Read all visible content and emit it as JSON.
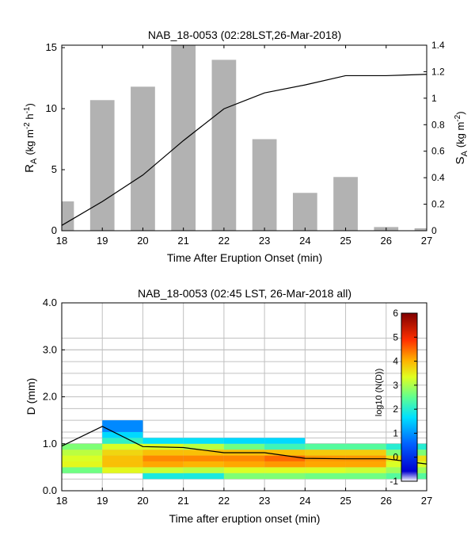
{
  "chart_data": [
    {
      "type": "bar",
      "title": "NAB_18-0053 (02:28LST,26-Mar-2018)",
      "xlabel": "Time After Eruption Onset (min)",
      "ylabel_left": {
        "base": "R",
        "sub": "A",
        "units": "(kg m",
        "sup1": "-2",
        "mid": " h",
        "sup2": "-1",
        "close": ")"
      },
      "ylabel_right": {
        "base": "S",
        "sub": "A",
        "units": "(kg m",
        "sup1": "-2",
        "close": ")"
      },
      "xlim": [
        18,
        27
      ],
      "ylim_left": [
        0,
        15.2
      ],
      "ylim_right": [
        0,
        1.4
      ],
      "xticks": [
        18,
        19,
        20,
        21,
        22,
        23,
        24,
        25,
        26,
        27
      ],
      "yticks_left": [
        0,
        5,
        10,
        15
      ],
      "yticks_right": [
        0,
        0.2,
        0.4,
        0.6,
        0.8,
        1,
        1.2,
        1.4
      ],
      "bars": [
        {
          "x": 18,
          "value": 2.4
        },
        {
          "x": 19,
          "value": 10.7
        },
        {
          "x": 20,
          "value": 11.8
        },
        {
          "x": 21,
          "value": 15.3
        },
        {
          "x": 22,
          "value": 14.0
        },
        {
          "x": 23,
          "value": 7.5
        },
        {
          "x": 24,
          "value": 3.1
        },
        {
          "x": 25,
          "value": 4.4
        },
        {
          "x": 26,
          "value": 0.3
        },
        {
          "x": 27,
          "value": 0.2
        }
      ],
      "bar_color": "#b2b2b2",
      "cumulative_line": {
        "x": [
          18,
          19,
          20,
          21,
          22,
          23,
          24,
          25,
          26,
          27
        ],
        "y": [
          0.04,
          0.22,
          0.42,
          0.68,
          0.92,
          1.04,
          1.1,
          1.17,
          1.17,
          1.18
        ]
      }
    },
    {
      "type": "heatmap",
      "title": "NAB_18-0053 (02:45 LST, 26-Mar-2018 all)",
      "xlabel": "Time after eruption onset (min)",
      "ylabel": "D (mm)",
      "colorbar_label": "log10 (N(D))",
      "xlim": [
        18,
        27
      ],
      "ylim": [
        0,
        4
      ],
      "xticks": [
        18,
        19,
        20,
        21,
        22,
        23,
        24,
        25,
        26,
        27
      ],
      "yticks": [
        0,
        1,
        2,
        3,
        4
      ],
      "ytick_labels": [
        "0.0",
        "1.0",
        "2.0",
        "3.0",
        "4.0"
      ],
      "clim": [
        -1,
        6
      ],
      "colorbar_ticks": [
        -1,
        0,
        1,
        2,
        3,
        4,
        5,
        6
      ],
      "bin_edges": [
        0.25,
        0.375,
        0.5,
        0.625,
        0.75,
        0.875,
        1.0,
        1.125,
        1.25,
        1.5,
        1.75,
        2.0,
        2.25,
        2.5,
        2.75,
        3.0,
        3.25
      ],
      "cells": [
        [
          18,
          0.375,
          2.6
        ],
        [
          18,
          0.5,
          3.4
        ],
        [
          18,
          0.625,
          3.3
        ],
        [
          18,
          0.75,
          3.1
        ],
        [
          18,
          0.875,
          2.7
        ],
        [
          19,
          0.375,
          3.4
        ],
        [
          19,
          0.5,
          3.9
        ],
        [
          19,
          0.625,
          3.9
        ],
        [
          19,
          0.75,
          3.7
        ],
        [
          19,
          0.875,
          3.3
        ],
        [
          19,
          1.0,
          2.1
        ],
        [
          19,
          1.125,
          1.6
        ],
        [
          19,
          1.25,
          0.9
        ],
        [
          20,
          0.25,
          1.9
        ],
        [
          20,
          0.375,
          3.2
        ],
        [
          20,
          0.5,
          4.1
        ],
        [
          20,
          0.625,
          4.3
        ],
        [
          20,
          0.75,
          3.9
        ],
        [
          20,
          0.875,
          3.3
        ],
        [
          20,
          1.0,
          1.7
        ],
        [
          21,
          0.25,
          1.9
        ],
        [
          21,
          0.375,
          3.1
        ],
        [
          21,
          0.5,
          4.0
        ],
        [
          21,
          0.625,
          4.3
        ],
        [
          21,
          0.75,
          3.9
        ],
        [
          21,
          0.875,
          3.1
        ],
        [
          21,
          1.0,
          1.7
        ],
        [
          22,
          0.25,
          2.7
        ],
        [
          22,
          0.375,
          3.3
        ],
        [
          22,
          0.5,
          4.1
        ],
        [
          22,
          0.625,
          4.3
        ],
        [
          22,
          0.75,
          3.9
        ],
        [
          22,
          0.875,
          2.6
        ],
        [
          22,
          1.0,
          1.6
        ],
        [
          23,
          0.25,
          2.7
        ],
        [
          23,
          0.375,
          3.3
        ],
        [
          23,
          0.5,
          4.2
        ],
        [
          23,
          0.625,
          4.5
        ],
        [
          23,
          0.75,
          3.9
        ],
        [
          23,
          0.875,
          2.2
        ],
        [
          23,
          1.0,
          1.6
        ],
        [
          24,
          0.25,
          2.6
        ],
        [
          24,
          0.375,
          3.3
        ],
        [
          24,
          0.5,
          4.1
        ],
        [
          24,
          0.625,
          4.2
        ],
        [
          24,
          0.75,
          3.8
        ],
        [
          24,
          0.875,
          2.4
        ],
        [
          25,
          0.25,
          2.6
        ],
        [
          25,
          0.375,
          3.2
        ],
        [
          25,
          0.5,
          4.1
        ],
        [
          25,
          0.625,
          4.2
        ],
        [
          25,
          0.75,
          3.8
        ],
        [
          25,
          0.875,
          2.4
        ],
        [
          26,
          0.25,
          2.4
        ],
        [
          26,
          0.375,
          2.9
        ],
        [
          26,
          0.5,
          3.3
        ],
        [
          26,
          0.625,
          3.6
        ],
        [
          26,
          0.75,
          2.7
        ],
        [
          26,
          0.875,
          2.0
        ]
      ],
      "mean_line": {
        "x": [
          18,
          19,
          20,
          21,
          22,
          23,
          24,
          25,
          26,
          27
        ],
        "y": [
          0.95,
          1.37,
          0.94,
          0.92,
          0.81,
          0.81,
          0.69,
          0.68,
          0.68,
          0.57
        ]
      }
    }
  ]
}
